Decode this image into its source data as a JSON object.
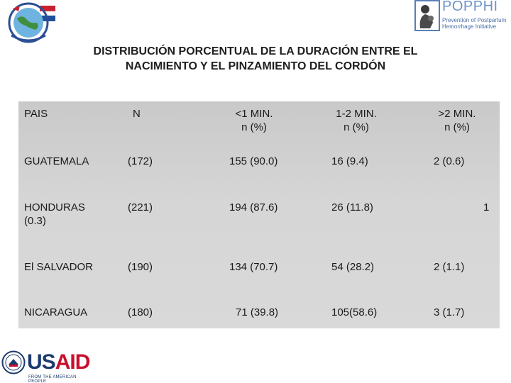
{
  "header": {
    "popphi_name": "POPPHI",
    "popphi_tagline": "Prevention of Postpartum Hemorrhage Initiative"
  },
  "title_line1": "DISTRIBUCIÓN PORCENTUAL DE LA DURACIÓN ENTRE EL",
  "title_line2": "NACIMIENTO Y EL PINZAMIENTO DEL CORDÓN",
  "table": {
    "headers": {
      "pais": "PAIS",
      "n": "N",
      "lt1_line1": "<1 MIN.",
      "lt1_line2": "n (%)",
      "b12_line1": "1-2 MIN.",
      "b12_line2": "n (%)",
      "gt2_line1": ">2 MIN.",
      "gt2_line2": "n (%)"
    },
    "rows": [
      {
        "pais": "GUATEMALA",
        "n": "(172)",
        "lt1": "155 (90.0)",
        "b12": "16 (9.4)",
        "gt2": "2 (0.6)"
      },
      {
        "pais_line1": "HONDURAS",
        "pais_line2": "(0.3)",
        "n": "(221)",
        "lt1": "194 (87.6)",
        "b12": "26 (11.8)",
        "gt2": "1"
      },
      {
        "pais": "El SALVADOR",
        "n": "(190)",
        "lt1": "134 (70.7)",
        "b12": "54 (28.2)",
        "gt2": "2 (1.1)"
      },
      {
        "pais": "NICARAGUA",
        "n": "(180)",
        "lt1": "71 (39.8)",
        "b12": "105(58.6)",
        "gt2": "3 (1.7)"
      }
    ]
  },
  "footer": {
    "usaid_us": "US",
    "usaid_aid": "AID",
    "usaid_sub": "FROM THE AMERICAN PEOPLE"
  }
}
